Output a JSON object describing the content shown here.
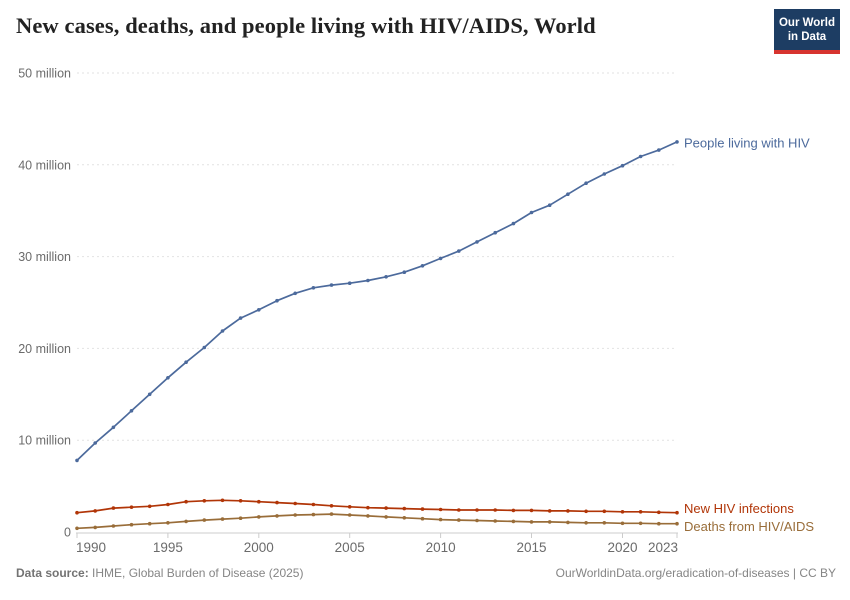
{
  "header": {
    "title": "New cases, deaths, and people living with HIV/AIDS, World",
    "logo": {
      "line1": "Our World",
      "line2": "in Data",
      "bg_color": "#1d3d63",
      "bar_color": "#d7342f"
    }
  },
  "chart_data": {
    "type": "line",
    "title": "New cases, deaths, and people living with HIV/AIDS, World",
    "xlabel": "",
    "ylabel": "",
    "xlim": [
      1990,
      2023
    ],
    "ylim": [
      0,
      50
    ],
    "grid": "horizontal-dashed",
    "legend_position": "right-end-labels",
    "unit_hint": "million people",
    "years": [
      1990,
      1991,
      1992,
      1993,
      1994,
      1995,
      1996,
      1997,
      1998,
      1999,
      2000,
      2001,
      2002,
      2003,
      2004,
      2005,
      2006,
      2007,
      2008,
      2009,
      2010,
      2011,
      2012,
      2013,
      2014,
      2015,
      2016,
      2017,
      2018,
      2019,
      2020,
      2021,
      2022,
      2023
    ],
    "x_ticks": {
      "values": [
        1990,
        1995,
        2000,
        2005,
        2010,
        2015,
        2020,
        2023
      ],
      "labels": [
        "1990",
        "1995",
        "2000",
        "2005",
        "2010",
        "2015",
        "2020",
        "2023"
      ]
    },
    "y_ticks": {
      "values": [
        0,
        10,
        20,
        30,
        40,
        50
      ],
      "labels": [
        "0",
        "10 million",
        "20 million",
        "30 million",
        "40 million",
        "50 million"
      ]
    },
    "series": [
      {
        "name": "People living with HIV",
        "color": "#4C6A9C",
        "values": [
          7.8,
          9.7,
          11.4,
          13.2,
          15.0,
          16.8,
          18.5,
          20.1,
          21.9,
          23.3,
          24.2,
          25.2,
          26.0,
          26.6,
          26.9,
          27.1,
          27.4,
          27.8,
          28.3,
          29.0,
          29.8,
          30.6,
          31.6,
          32.6,
          33.6,
          34.8,
          35.6,
          36.8,
          38.0,
          39.0,
          39.9,
          40.9,
          41.6,
          42.5
        ]
      },
      {
        "name": "New HIV infections",
        "color": "#B13507",
        "values": [
          2.1,
          2.3,
          2.6,
          2.7,
          2.8,
          3.0,
          3.3,
          3.4,
          3.45,
          3.4,
          3.3,
          3.2,
          3.1,
          3.0,
          2.85,
          2.75,
          2.65,
          2.6,
          2.55,
          2.5,
          2.45,
          2.4,
          2.4,
          2.4,
          2.35,
          2.35,
          2.3,
          2.3,
          2.25,
          2.25,
          2.2,
          2.2,
          2.15,
          2.1
        ]
      },
      {
        "name": "Deaths from HIV/AIDS",
        "color": "#996D39",
        "values": [
          0.4,
          0.5,
          0.65,
          0.8,
          0.9,
          1.0,
          1.15,
          1.3,
          1.4,
          1.5,
          1.65,
          1.75,
          1.85,
          1.9,
          1.95,
          1.85,
          1.75,
          1.65,
          1.55,
          1.45,
          1.35,
          1.3,
          1.25,
          1.2,
          1.15,
          1.1,
          1.1,
          1.05,
          1.0,
          1.0,
          0.95,
          0.95,
          0.9,
          0.9
        ]
      }
    ]
  },
  "footer": {
    "source_label": "Data source:",
    "source_text": " IHME, Global Burden of Disease (2025)",
    "attribution": "OurWorldinData.org/eradication-of-diseases | CC BY"
  }
}
